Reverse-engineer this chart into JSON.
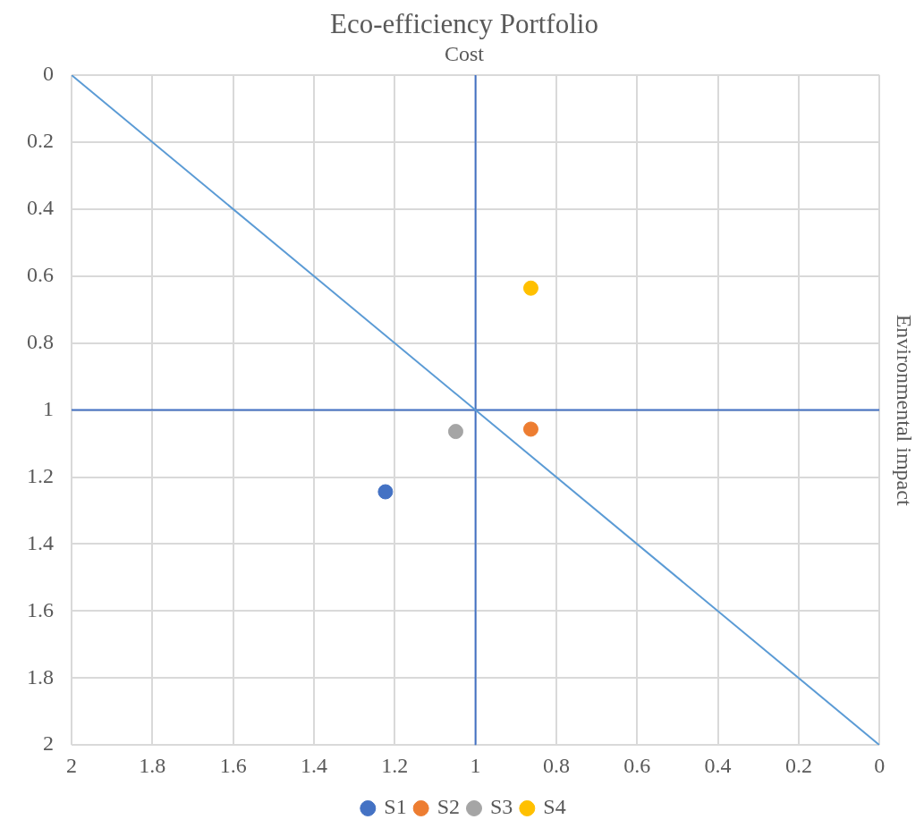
{
  "chart_data": {
    "type": "scatter",
    "title": "Eco-efficiency Portfolio",
    "xlabel": "Cost",
    "ylabel": "Environmental impact",
    "xlim": [
      2,
      0
    ],
    "xticks": [
      2,
      1.8,
      1.6,
      1.4,
      1.2,
      1,
      0.8,
      0.6,
      0.4,
      0.2,
      0
    ],
    "ylim": [
      2,
      0
    ],
    "yticks": [
      0,
      0.2,
      0.4,
      0.6,
      0.8,
      1,
      1.2,
      1.4,
      1.6,
      1.8,
      2
    ],
    "grid": true,
    "legend": "bottom",
    "marker": "circle",
    "series": [
      {
        "name": "S1",
        "color": "#4472c4",
        "x": [
          1.223
        ],
        "values": [
          1.244
        ]
      },
      {
        "name": "S2",
        "color": "#ed7d31",
        "x": [
          0.863
        ],
        "values": [
          1.057
        ]
      },
      {
        "name": "S3",
        "color": "#a5a5a5",
        "x": [
          1.049
        ],
        "values": [
          1.064
        ]
      },
      {
        "name": "S4",
        "color": "#ffc000",
        "x": [
          0.863
        ],
        "values": [
          0.636
        ]
      },
      {
        "type": "line",
        "color": "#5b9bd5",
        "x": [
          2,
          0
        ],
        "values": [
          0,
          2
        ],
        "marker": "none"
      },
      {
        "type": "line",
        "color": "#4472c4",
        "x": [
          1,
          1
        ],
        "values": [
          0,
          2
        ],
        "marker": "none"
      },
      {
        "type": "line",
        "color": "#4472c4",
        "x": [
          2,
          0
        ],
        "values": [
          1,
          1
        ],
        "marker": "none"
      }
    ]
  }
}
